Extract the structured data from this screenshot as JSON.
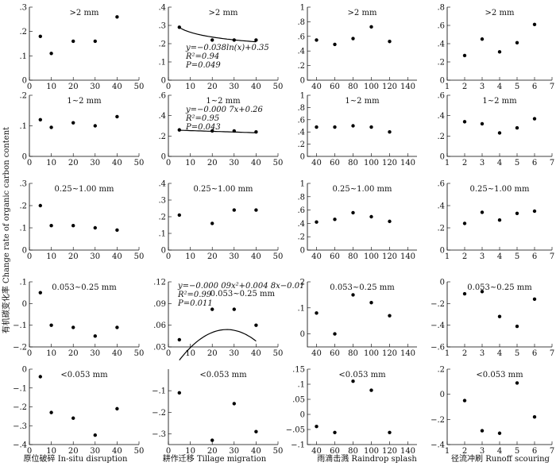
{
  "chart_data": {
    "type": "scatter",
    "ylabel": "有机碳变化率 Change rate of organic carbon content",
    "column_titles": [
      "原位破碎 In-situ disruption",
      "耕作迁移 Tillage migration",
      "雨滴击溅 Raindrop splash",
      "径流冲刷 Runoff scouring"
    ],
    "row_labels": [
      ">2 mm",
      "1~2 mm",
      "0.25~1.00 mm",
      "0.053~0.25 mm",
      "<0.053 mm"
    ],
    "columns": [
      {
        "xlim": [
          0,
          50
        ],
        "xticks": [
          0,
          10,
          20,
          30,
          40,
          50
        ]
      },
      {
        "xlim": [
          0,
          50
        ],
        "xticks": [
          0,
          10,
          20,
          30,
          40,
          50
        ]
      },
      {
        "xlim": [
          30,
          150
        ],
        "xticks": [
          40,
          60,
          80,
          100,
          120,
          140
        ]
      },
      {
        "xlim": [
          1,
          7
        ],
        "xticks": [
          1,
          2,
          3,
          4,
          5,
          6,
          7
        ]
      }
    ],
    "panels": [
      {
        "row": 0,
        "col": 0,
        "label": ">2 mm",
        "ylim": [
          0,
          0.3
        ],
        "yticks": [
          0,
          0.1,
          0.2,
          0.3
        ],
        "x": [
          5,
          10,
          20,
          30,
          40
        ],
        "y": [
          0.18,
          0.11,
          0.16,
          0.16,
          0.26
        ]
      },
      {
        "row": 0,
        "col": 1,
        "label": ">2 mm",
        "ylim": [
          0,
          0.4
        ],
        "yticks": [
          0,
          0.1,
          0.2,
          0.3,
          0.4
        ],
        "x": [
          5,
          20,
          30,
          40
        ],
        "y": [
          0.29,
          0.22,
          0.22,
          0.22
        ],
        "fit": {
          "kind": "ln",
          "a": -0.038,
          "b": 0.35,
          "x0": 5,
          "x1": 40
        },
        "annotation": [
          "y=−0.038ln(x)+0.35",
          "R²=0.94",
          "P=0.049"
        ]
      },
      {
        "row": 0,
        "col": 2,
        "label": ">2 mm",
        "ylim": [
          0,
          1.0
        ],
        "yticks": [
          0,
          0.2,
          0.4,
          0.6,
          0.8,
          1.0
        ],
        "x": [
          40,
          60,
          80,
          100,
          120
        ],
        "y": [
          0.55,
          0.49,
          0.57,
          0.73,
          0.53
        ]
      },
      {
        "row": 0,
        "col": 3,
        "label": ">2 mm",
        "ylim": [
          0,
          0.8
        ],
        "yticks": [
          0,
          0.2,
          0.4,
          0.6,
          0.8
        ],
        "x": [
          2,
          3,
          4,
          5,
          6
        ],
        "y": [
          0.27,
          0.45,
          0.31,
          0.41,
          0.61
        ]
      },
      {
        "row": 1,
        "col": 0,
        "label": "1~2 mm",
        "ylim": [
          0,
          0.2
        ],
        "yticks": [
          0,
          0.1,
          0.2
        ],
        "x": [
          5,
          10,
          20,
          30,
          40
        ],
        "y": [
          0.12,
          0.095,
          0.11,
          0.1,
          0.13
        ]
      },
      {
        "row": 1,
        "col": 1,
        "label": "1~2 mm",
        "ylim": [
          0,
          0.6
        ],
        "yticks": [
          0,
          0.2,
          0.4,
          0.6
        ],
        "x": [
          5,
          20,
          30,
          40
        ],
        "y": [
          0.26,
          0.25,
          0.25,
          0.24
        ],
        "fit": {
          "kind": "linear",
          "a": -0.0007,
          "b": 0.26,
          "x0": 5,
          "x1": 40
        },
        "annotation": [
          "y=−0.000 7x+0.26",
          "R²=0.95",
          "P=0.043"
        ]
      },
      {
        "row": 1,
        "col": 2,
        "label": "1~2 mm",
        "ylim": [
          0,
          1.0
        ],
        "yticks": [
          0,
          0.2,
          0.4,
          0.6,
          0.8,
          1.0
        ],
        "x": [
          40,
          60,
          80,
          100,
          120
        ],
        "y": [
          0.48,
          0.48,
          0.5,
          0.48,
          0.4
        ]
      },
      {
        "row": 1,
        "col": 3,
        "label": "1~2 mm",
        "ylim": [
          0,
          0.6
        ],
        "yticks": [
          0,
          0.2,
          0.4,
          0.6
        ],
        "x": [
          2,
          3,
          4,
          5,
          6
        ],
        "y": [
          0.34,
          0.32,
          0.23,
          0.28,
          0.37
        ]
      },
      {
        "row": 2,
        "col": 0,
        "label": "0.25~1.00 mm",
        "ylim": [
          0,
          0.3
        ],
        "yticks": [
          0,
          0.1,
          0.2,
          0.3
        ],
        "x": [
          5,
          10,
          20,
          30,
          40
        ],
        "y": [
          0.2,
          0.11,
          0.11,
          0.1,
          0.09
        ]
      },
      {
        "row": 2,
        "col": 1,
        "label": "0.25~1.00 mm",
        "ylim": [
          0,
          0.4
        ],
        "yticks": [
          0,
          0.1,
          0.2,
          0.3,
          0.4
        ],
        "x": [
          5,
          20,
          30,
          40
        ],
        "y": [
          0.21,
          0.16,
          0.24,
          0.24
        ]
      },
      {
        "row": 2,
        "col": 2,
        "label": "0.25~1.00 mm",
        "ylim": [
          0,
          1.0
        ],
        "yticks": [
          0,
          0.2,
          0.4,
          0.6,
          0.8,
          1.0
        ],
        "x": [
          40,
          60,
          80,
          100,
          120
        ],
        "y": [
          0.42,
          0.46,
          0.56,
          0.5,
          0.43
        ]
      },
      {
        "row": 2,
        "col": 3,
        "label": "0.25~1.00 mm",
        "ylim": [
          0,
          0.6
        ],
        "yticks": [
          0,
          0.2,
          0.4,
          0.6
        ],
        "x": [
          2,
          3,
          4,
          5,
          6
        ],
        "y": [
          0.24,
          0.34,
          0.27,
          0.33,
          0.35
        ]
      },
      {
        "row": 3,
        "col": 0,
        "label": "0.053~0.25 mm",
        "ylim": [
          -0.2,
          0.1
        ],
        "yticks": [
          -0.2,
          -0.1,
          0,
          0.1
        ],
        "x": [
          5,
          10,
          20,
          30,
          40
        ],
        "y": [
          0.05,
          -0.1,
          -0.11,
          -0.15,
          -0.11
        ]
      },
      {
        "row": 3,
        "col": 1,
        "label": "0.053~0.25 mm",
        "ylim": [
          0.03,
          0.12
        ],
        "yticks": [
          0.03,
          0.06,
          0.09,
          0.12
        ],
        "x": [
          5,
          20,
          30,
          40
        ],
        "y": [
          0.04,
          0.082,
          0.082,
          0.06
        ],
        "fit": {
          "kind": "poly2",
          "a": -9e-05,
          "b": 0.0048,
          "c": -0.01,
          "x0": 5,
          "x1": 40
        },
        "annotation": [
          "y=−0.000 09x²+0.004 8x−0.01",
          "R²=0.99",
          "P=0.011"
        ]
      },
      {
        "row": 3,
        "col": 2,
        "label": "0.053~0.25 mm",
        "ylim": [
          -0.05,
          0.2
        ],
        "yticks": [
          0,
          0.1,
          0.2
        ],
        "x": [
          40,
          60,
          80,
          100,
          120
        ],
        "y": [
          0.08,
          0.0,
          0.15,
          0.12,
          0.07
        ]
      },
      {
        "row": 3,
        "col": 3,
        "label": "0.053~0.25 mm",
        "ylim": [
          -0.6,
          0
        ],
        "yticks": [
          -0.6,
          -0.4,
          -0.2,
          0
        ],
        "x": [
          2,
          3,
          4,
          5,
          6
        ],
        "y": [
          -0.11,
          -0.09,
          -0.32,
          -0.41,
          -0.16
        ]
      },
      {
        "row": 4,
        "col": 0,
        "label": "<0.053 mm",
        "ylim": [
          -0.4,
          0
        ],
        "yticks": [
          -0.4,
          -0.3,
          -0.2,
          -0.1,
          0
        ],
        "x": [
          5,
          10,
          20,
          30,
          40
        ],
        "y": [
          -0.04,
          -0.23,
          -0.26,
          -0.35,
          -0.21
        ]
      },
      {
        "row": 4,
        "col": 1,
        "label": "<0.053 mm",
        "ylim": [
          -0.35,
          0
        ],
        "yticks": [
          -0.3,
          -0.2,
          -0.1
        ],
        "x": [
          5,
          20,
          30,
          40
        ],
        "y": [
          -0.11,
          -0.33,
          -0.16,
          -0.29
        ]
      },
      {
        "row": 4,
        "col": 2,
        "label": "<0.053 mm",
        "ylim": [
          -0.1,
          0.15
        ],
        "yticks": [
          -0.1,
          -0.05,
          0,
          0.05,
          0.1,
          0.15
        ],
        "x": [
          40,
          60,
          80,
          100,
          120
        ],
        "y": [
          -0.04,
          -0.06,
          0.11,
          0.08,
          -0.06
        ]
      },
      {
        "row": 4,
        "col": 3,
        "label": "<0.053 mm",
        "ylim": [
          -0.4,
          0.2
        ],
        "yticks": [
          -0.4,
          -0.2,
          0,
          0.2
        ],
        "x": [
          2,
          3,
          4,
          5,
          6
        ],
        "y": [
          -0.05,
          -0.29,
          -0.31,
          0.09,
          -0.18
        ]
      }
    ]
  }
}
